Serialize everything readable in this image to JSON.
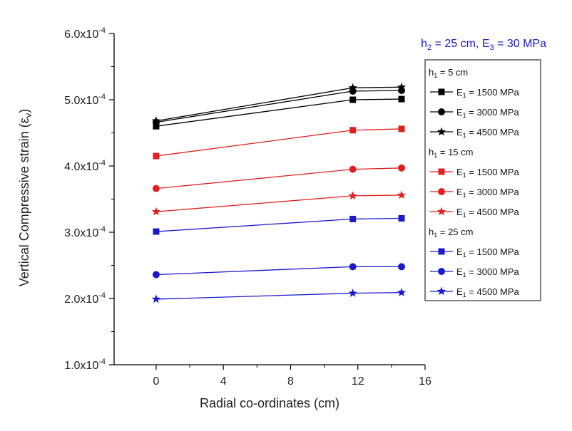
{
  "chart_data": {
    "type": "line",
    "title": "",
    "annotation": {
      "h_sym": "h",
      "h_sub": "2",
      "h_val": " = 25 cm, ",
      "e_sym": "E",
      "e_sub": "3",
      "e_val": " = 30 MPa",
      "color": "#1a1acc"
    },
    "xlabel": "Radial co-ordinates (cm)",
    "ylabel_main": "Vertical Compressive strain (ε",
    "ylabel_sub": "v",
    "ylabel_end": ")",
    "xlim": [
      -2.5,
      16
    ],
    "ylim": [
      0.0001,
      0.0006
    ],
    "x_ticks": [
      0,
      4,
      8,
      12,
      16
    ],
    "x_tick_labels": [
      "0",
      "4",
      "8",
      "12",
      "16"
    ],
    "y_ticks": [
      0.0001,
      0.0002,
      0.0003,
      0.0004,
      0.0005,
      0.0006
    ],
    "y_tick_labels": [
      {
        "mant": "1.0x10",
        "exp": "-4"
      },
      {
        "mant": "2.0x10",
        "exp": "-4"
      },
      {
        "mant": "3.0x10",
        "exp": "-4"
      },
      {
        "mant": "4.0x10",
        "exp": "-4"
      },
      {
        "mant": "5.0x10",
        "exp": "-4"
      },
      {
        "mant": "6.0x10",
        "exp": "-4"
      }
    ],
    "x": [
      0,
      11.7,
      14.6
    ],
    "groups": [
      {
        "header_sym": "h",
        "header_sub": "1",
        "header_val": " = 5 cm",
        "color": "#000000",
        "series": [
          {
            "sym": "E",
            "sub": "1",
            "val": " = 1500 MPa",
            "marker": "square",
            "values": [
              0.00046,
              0.0005,
              0.000501
            ]
          },
          {
            "sym": "E",
            "sub": "1",
            "val": " = 3000 MPa",
            "marker": "circle",
            "values": [
              0.000466,
              0.000513,
              0.000514
            ]
          },
          {
            "sym": "E",
            "sub": "1",
            "val": " = 4500 MPa",
            "marker": "star",
            "values": [
              0.000468,
              0.000518,
              0.000519
            ]
          }
        ]
      },
      {
        "header_sym": "h",
        "header_sub": "1",
        "header_val": " = 15 cm",
        "color": "#e02020",
        "series": [
          {
            "sym": "E",
            "sub": "1",
            "val": " = 1500 MPa",
            "marker": "square",
            "values": [
              0.000415,
              0.000454,
              0.000456
            ]
          },
          {
            "sym": "E",
            "sub": "1",
            "val": " = 3000 MPa",
            "marker": "circle",
            "values": [
              0.000366,
              0.000395,
              0.000397
            ]
          },
          {
            "sym": "E",
            "sub": "1",
            "val": " = 4500 MPa",
            "marker": "star",
            "values": [
              0.000331,
              0.000355,
              0.000356
            ]
          }
        ]
      },
      {
        "header_sym": "h",
        "header_sub": "1",
        "header_val": " = 25 cm",
        "color": "#1a1acc",
        "series": [
          {
            "sym": "E",
            "sub": "1",
            "val": " = 1500 MPa",
            "marker": "square",
            "values": [
              0.000301,
              0.00032,
              0.000321
            ]
          },
          {
            "sym": "E",
            "sub": "1",
            "val": " = 3000 MPa",
            "marker": "circle",
            "values": [
              0.000236,
              0.000248,
              0.000248
            ]
          },
          {
            "sym": "E",
            "sub": "1",
            "val": " = 4500 MPa",
            "marker": "star",
            "values": [
              0.000199,
              0.000208,
              0.000209
            ]
          }
        ]
      }
    ],
    "legend_position": "right"
  }
}
